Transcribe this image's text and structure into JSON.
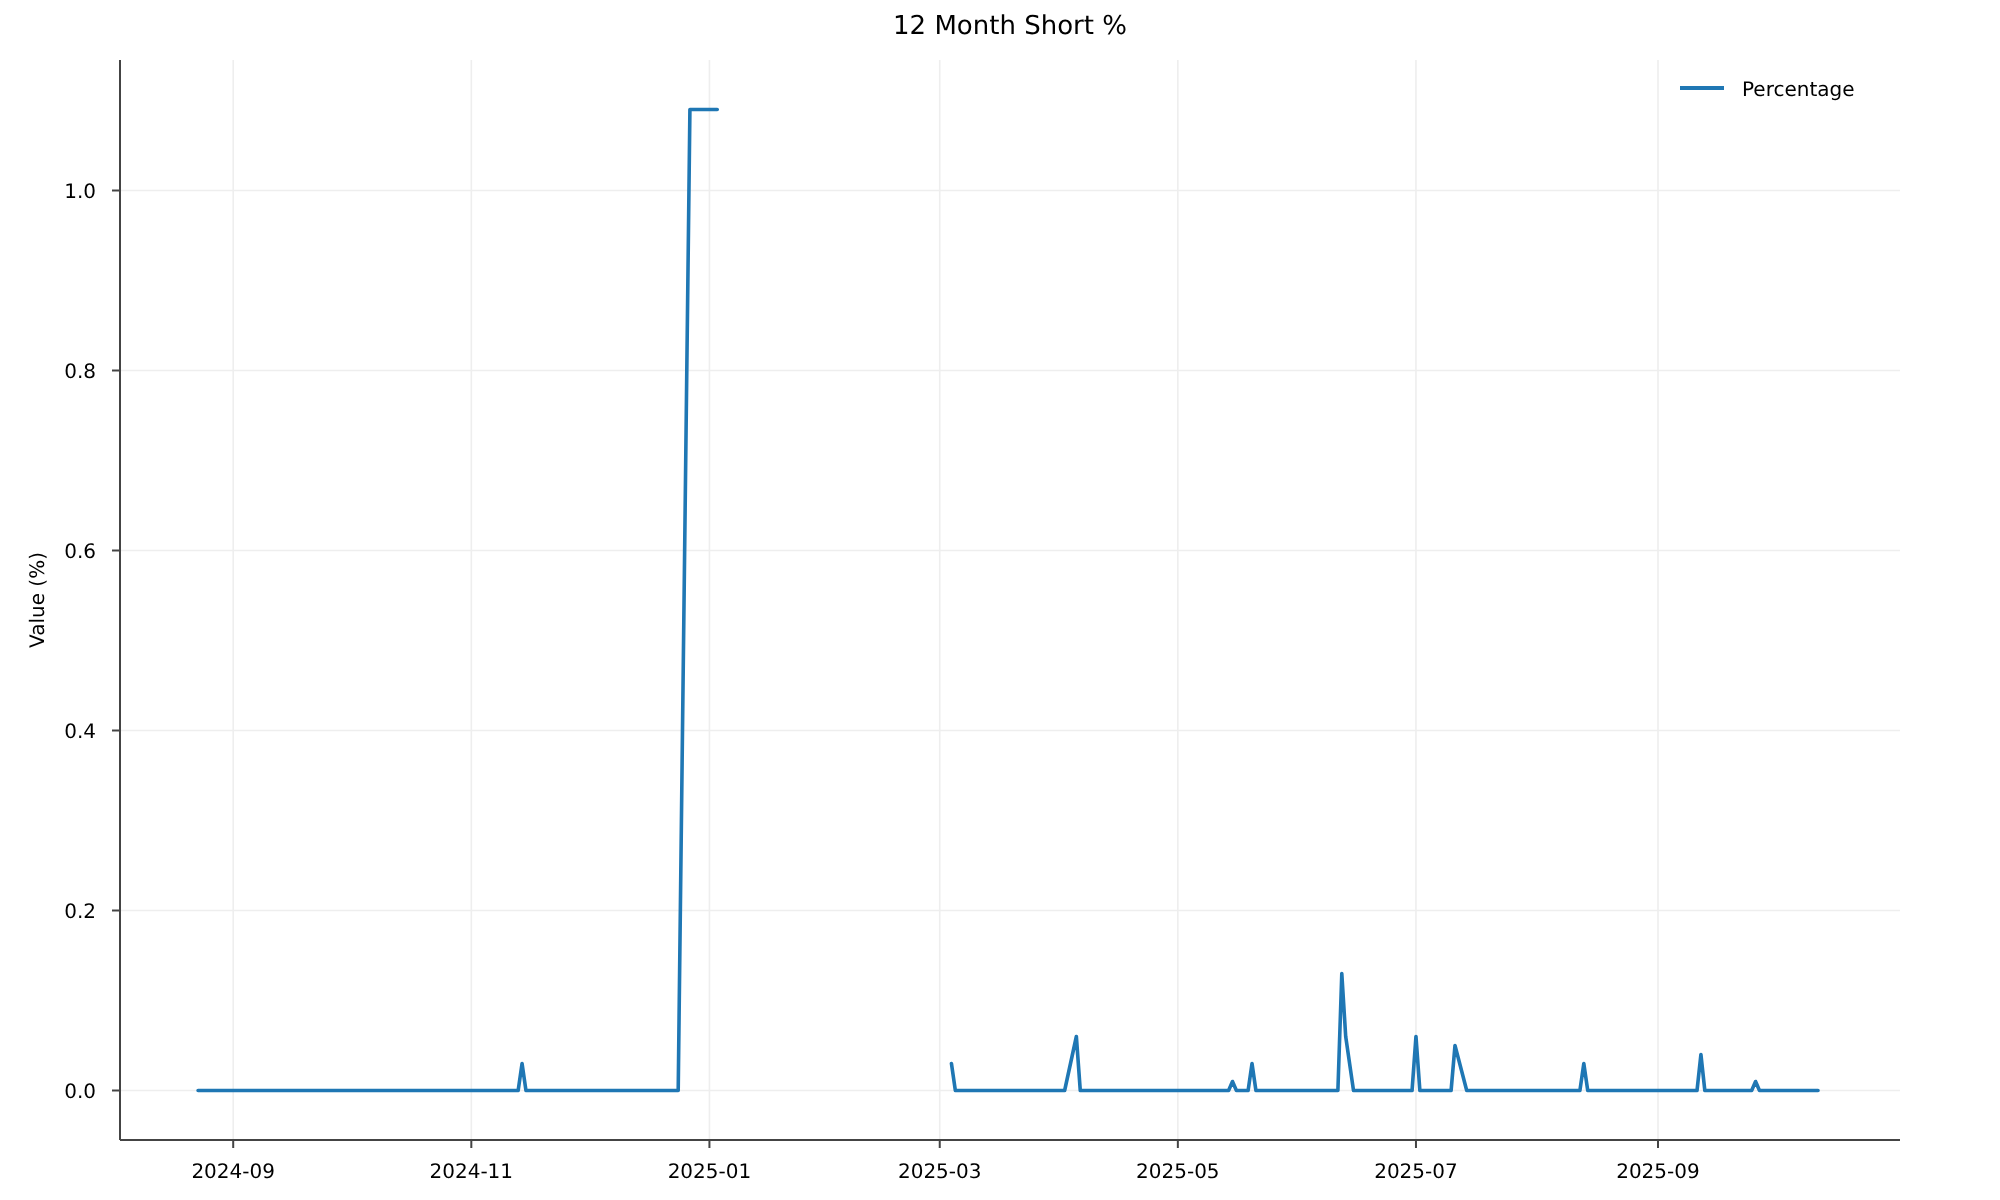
{
  "chart_data": {
    "type": "line",
    "title": "12 Month Short %",
    "ylabel": "Value (%)",
    "x": [
      "2024-08-23",
      "2024-11-13",
      "2024-11-14",
      "2024-11-15",
      "2024-12-24",
      "2024-12-27",
      "2025-01-03",
      "2025-02-01",
      "2025-03-04",
      "2025-03-05",
      "2025-04-02",
      "2025-04-05",
      "2025-04-06",
      "2025-05-14",
      "2025-05-15",
      "2025-05-16",
      "2025-05-19",
      "2025-05-20",
      "2025-05-21",
      "2025-06-11",
      "2025-06-12",
      "2025-06-13",
      "2025-06-15",
      "2025-06-30",
      "2025-07-01",
      "2025-07-02",
      "2025-07-10",
      "2025-07-11",
      "2025-07-14",
      "2025-08-12",
      "2025-08-13",
      "2025-08-14",
      "2025-09-11",
      "2025-09-12",
      "2025-09-13",
      "2025-09-25",
      "2025-09-26",
      "2025-09-27",
      "2025-10-12"
    ],
    "series": [
      {
        "name": "Percentage",
        "color": "#1f77b4",
        "values": [
          0,
          0,
          0.03,
          0,
          0,
          1.09,
          1.09,
          null,
          0.03,
          0,
          0,
          0.06,
          0,
          0,
          0.01,
          0,
          0,
          0.03,
          0,
          0,
          0.13,
          0.06,
          0,
          0,
          0.06,
          0,
          0,
          0.05,
          0,
          0,
          0.03,
          0,
          0,
          0.04,
          0,
          0,
          0.01,
          0,
          0
        ]
      }
    ],
    "xlim": [
      "2024-08-03",
      "2025-11-02"
    ],
    "ylim": [
      -0.055,
      1.145
    ],
    "xticks": [
      "2024-09",
      "2024-11",
      "2025-01",
      "2025-03",
      "2025-05",
      "2025-07",
      "2025-09"
    ],
    "yticks": [
      {
        "value": 0,
        "label": "0.0"
      },
      {
        "value": 0.2,
        "label": "0.2"
      },
      {
        "value": 0.4,
        "label": "0.4"
      },
      {
        "value": 0.6,
        "label": "0.6"
      },
      {
        "value": 0.8,
        "label": "0.8"
      },
      {
        "value": 1,
        "label": "1.0"
      }
    ],
    "grid": true,
    "legend": "top right",
    "line_style": "solid",
    "marker": "none"
  }
}
